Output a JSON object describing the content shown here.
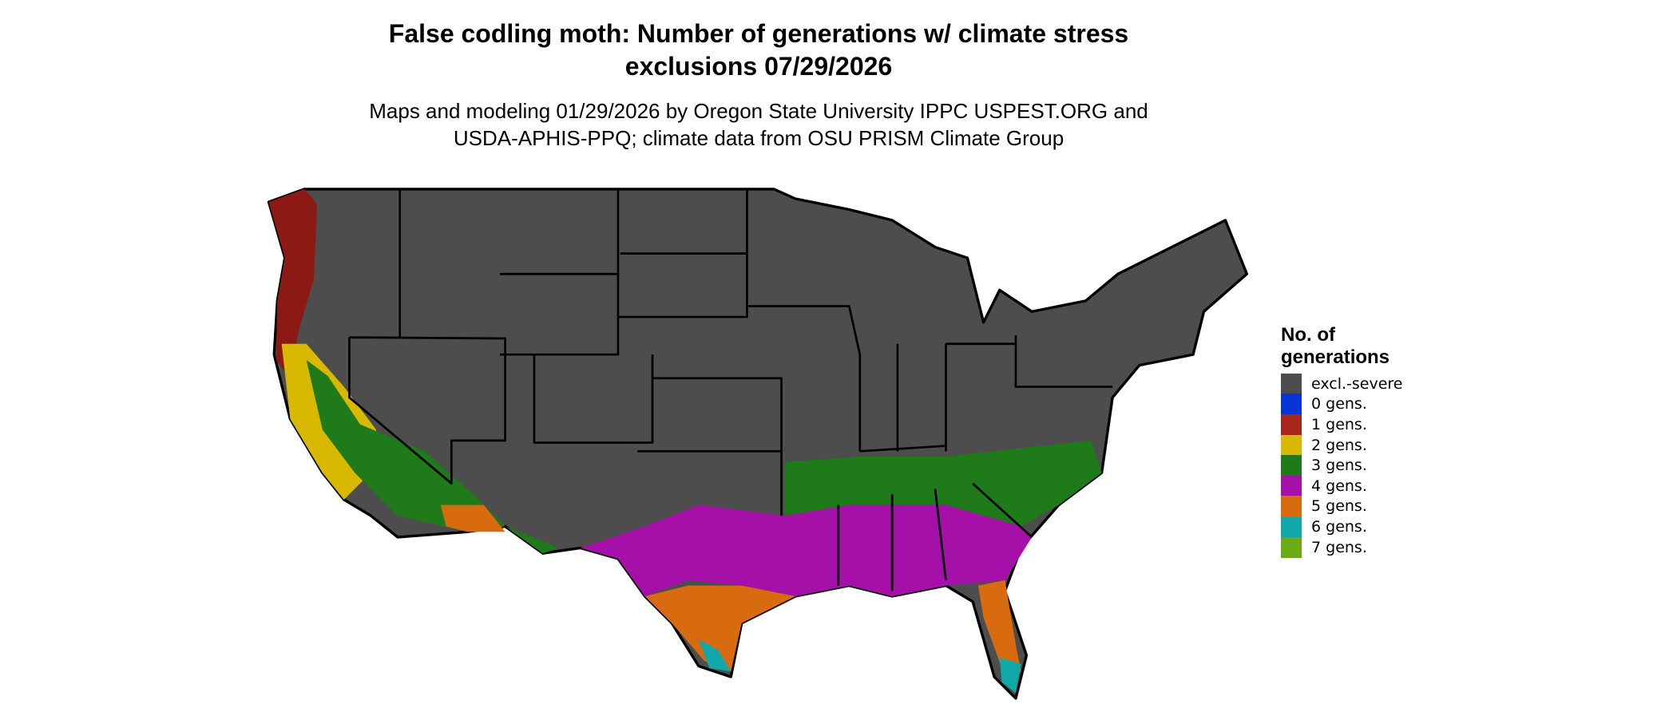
{
  "title": "False codling moth: Number of generations w/ climate stress exclusions 07/29/2026",
  "subtitle": "Maps and modeling 01/29/2026 by Oregon State University IPPC USPEST.ORG and USDA-APHIS-PPQ; climate data from OSU PRISM Climate Group",
  "legend": {
    "title": "No. of generations",
    "items": [
      {
        "label": "excl.-severe",
        "color": "#4d4d4d"
      },
      {
        "label": "0 gens.",
        "color": "#0a35d6"
      },
      {
        "label": "1 gens.",
        "color": "#a8251c"
      },
      {
        "label": "2 gens.",
        "color": "#d8b800"
      },
      {
        "label": "3 gens.",
        "color": "#1f7a1a"
      },
      {
        "label": "4 gens.",
        "color": "#a410a8"
      },
      {
        "label": "5 gens.",
        "color": "#d86b10"
      },
      {
        "label": "6 gens.",
        "color": "#10a8a8"
      },
      {
        "label": "7 gens.",
        "color": "#6aac14"
      }
    ]
  }
}
